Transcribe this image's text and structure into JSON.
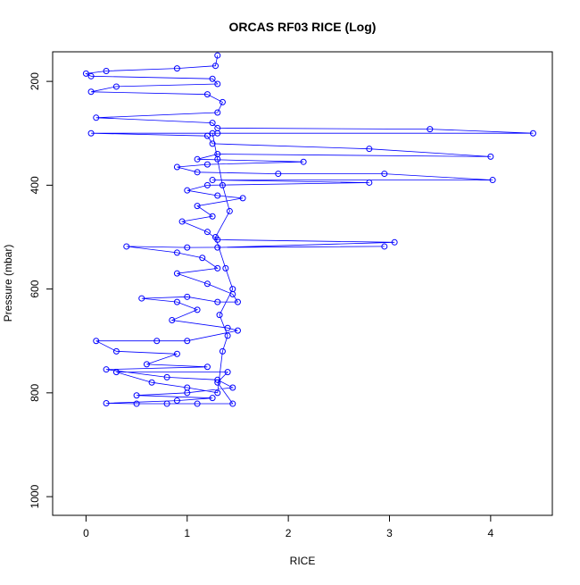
{
  "chart_data": {
    "type": "scatter",
    "title": "ORCAS RF03 RICE (Log)",
    "x_label": "RICE",
    "y_label": "Pressure (mbar)",
    "color": "#0000ff",
    "y_reversed": true,
    "xlim": [
      -0.33,
      4.61
    ],
    "ylim": [
      143,
      1036
    ],
    "xticks": [
      0,
      1,
      2,
      3,
      4
    ],
    "yticks": [
      200,
      400,
      600,
      800,
      1000
    ],
    "x": [
      1.3,
      1.28,
      0.9,
      0.2,
      0.0,
      0.05,
      1.25,
      1.3,
      0.3,
      0.05,
      1.2,
      1.35,
      1.3,
      0.1,
      1.25,
      1.3,
      3.4,
      4.42,
      1.3,
      0.05,
      1.2,
      1.25,
      2.8,
      4.0,
      1.3,
      1.1,
      2.15,
      1.2,
      0.9,
      1.1,
      1.9,
      2.95,
      4.02,
      1.25,
      2.8,
      1.2,
      1.0,
      1.3,
      1.55,
      1.1,
      1.25,
      0.95,
      1.2,
      1.3,
      3.05,
      1.3,
      2.95,
      1.0,
      0.4,
      0.9,
      1.15,
      1.3,
      0.9,
      1.2,
      1.45,
      1.5,
      1.3,
      1.0,
      0.55,
      0.9,
      1.1,
      0.85,
      1.4,
      1.5,
      1.0,
      0.7,
      0.1,
      0.3,
      0.9,
      0.6,
      1.2,
      0.2,
      0.8,
      1.3,
      1.45,
      1.0,
      0.5,
      1.25,
      0.9,
      0.2,
      0.5,
      0.8,
      1.1,
      1.45,
      1.3,
      1.4,
      0.3,
      0.65,
      1.0,
      1.3,
      1.35,
      1.4,
      1.32,
      1.45,
      1.38,
      1.28,
      1.42,
      1.35,
      1.3,
      1.25
    ],
    "values": [
      150,
      170,
      175,
      180,
      185,
      190,
      195,
      205,
      210,
      220,
      225,
      240,
      260,
      270,
      280,
      290,
      292,
      300,
      300,
      300,
      305,
      320,
      330,
      345,
      340,
      350,
      355,
      360,
      365,
      375,
      378,
      378,
      390,
      390,
      395,
      400,
      410,
      420,
      425,
      440,
      460,
      470,
      490,
      505,
      510,
      520,
      518,
      520,
      518,
      530,
      540,
      560,
      570,
      590,
      610,
      625,
      625,
      615,
      618,
      625,
      640,
      660,
      675,
      680,
      700,
      700,
      700,
      720,
      725,
      745,
      750,
      755,
      770,
      775,
      790,
      800,
      805,
      810,
      815,
      820,
      821,
      821,
      821,
      821,
      780,
      760,
      760,
      780,
      790,
      800,
      720,
      690,
      650,
      600,
      560,
      500,
      450,
      400,
      350,
      300
    ]
  }
}
